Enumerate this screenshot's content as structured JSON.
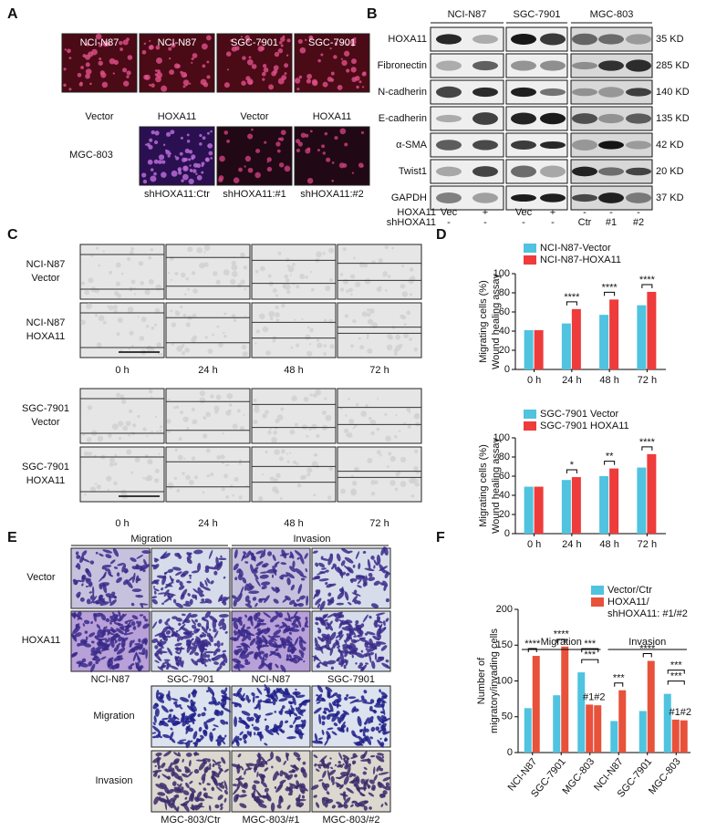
{
  "panel_labels": [
    "A",
    "B",
    "C",
    "D",
    "E",
    "F"
  ],
  "panel_a": {
    "top_titles": [
      "NCI-N87",
      "NCI-N87",
      "SGC-7901",
      "SGC-7901"
    ],
    "top_captions": [
      "Vector",
      "HOXA11",
      "Vector",
      "HOXA11"
    ],
    "bottom_title": "MGC-803",
    "bottom_captions": [
      "shHOXA11:Ctr",
      "shHOXA11:#1",
      "shHOXA11:#2"
    ]
  },
  "panel_b": {
    "columns": [
      "NCI-N87",
      "SGC-7901",
      "MGC-803"
    ],
    "rows": [
      {
        "name": "HOXA11",
        "size": "35 KD"
      },
      {
        "name": "Fibronectin",
        "size": "285 KD"
      },
      {
        "name": "N-cadherin",
        "size": "140 KD"
      },
      {
        "name": "E-cadherin",
        "size": "135 KD"
      },
      {
        "name": "α-SMA",
        "size": "42 KD"
      },
      {
        "name": "Twist1",
        "size": "20 KD"
      },
      {
        "name": "GAPDH",
        "size": "37 KD"
      }
    ],
    "conditions": [
      {
        "label": "HOXA11",
        "values": [
          "Vec",
          "+",
          "Vec",
          "+",
          "-",
          "-",
          "-"
        ]
      },
      {
        "label": "shHOXA11",
        "values": [
          "-",
          "-",
          "-",
          "-",
          "Ctr",
          "#1",
          "#2"
        ]
      }
    ]
  },
  "panel_c": {
    "rows": [
      [
        "NCI-N87",
        "Vector"
      ],
      [
        "NCI-N87",
        "HOXA11"
      ],
      [
        "SGC-7901",
        "Vector"
      ],
      [
        "SGC-7901",
        "HOXA11"
      ]
    ],
    "times": [
      "0 h",
      "24 h",
      "48 h",
      "72 h"
    ]
  },
  "panel_e": {
    "headers": [
      "Migration",
      "Invasion"
    ],
    "rows": [
      "Vector",
      "HOXA11"
    ],
    "captions": [
      "NCI-N87",
      "SGC-7901",
      "NCI-N87",
      "SGC-7901"
    ],
    "lower_rows": [
      "Migration",
      "Invasion"
    ],
    "lower_captions": [
      "MGC-803/Ctr",
      "MGC-803/#1",
      "MGC-803/#2"
    ]
  },
  "chart_data": [
    {
      "type": "bar",
      "ylabel": [
        "Migrating cells (%)",
        "Wound healing assay"
      ],
      "categories": [
        "0 h",
        "24 h",
        "48 h",
        "72 h"
      ],
      "series": [
        {
          "name": "NCI-N87-Vector",
          "color": "#4fc3df",
          "values": [
            41,
            48,
            57,
            67
          ]
        },
        {
          "name": "NCI-N87-HOXA11",
          "color": "#ee3b3b",
          "values": [
            41,
            63,
            73,
            81
          ]
        }
      ],
      "ylim": [
        0,
        100
      ],
      "yticks": [
        0,
        20,
        40,
        60,
        80,
        100
      ],
      "legend": "upper left",
      "annotations": [
        "****",
        "****",
        "****"
      ]
    },
    {
      "type": "bar",
      "ylabel": [
        "Migrating cells (%)",
        "Wound healing assay"
      ],
      "categories": [
        "0 h",
        "24 h",
        "48 h",
        "72 h"
      ],
      "series": [
        {
          "name": "SGC-7901 Vector",
          "color": "#4fc3df",
          "values": [
            49,
            56,
            60,
            69
          ]
        },
        {
          "name": "SGC-7901 HOXA11",
          "color": "#ee3b3b",
          "values": [
            49,
            59,
            68,
            83
          ]
        }
      ],
      "ylim": [
        0,
        100
      ],
      "yticks": [
        0,
        20,
        40,
        60,
        80,
        100
      ],
      "legend": "upper left",
      "annotations": [
        "*",
        "**",
        "****"
      ]
    },
    {
      "type": "bar",
      "ylabel": [
        "Number of",
        "migratory/invading cells"
      ],
      "categories": [
        "NCI-N87",
        "SGC-7901",
        "MGC-803",
        "NCI-N87",
        "SGC-7901",
        "MGC-803"
      ],
      "groups": [
        "Migration",
        "Invasion"
      ],
      "series": [
        {
          "name": "Vector/Ctr",
          "color": "#4fc3df",
          "values": [
            62,
            80,
            112,
            44,
            58,
            82
          ]
        },
        {
          "name": [
            "HOXA11/",
            "shHOXA11: #1/#2"
          ],
          "color": "#e8513a",
          "values": [
            [
              135
            ],
            [
              148
            ],
            [
              67,
              66
            ],
            [
              87
            ],
            [
              128
            ],
            [
              46,
              45
            ]
          ]
        }
      ],
      "ylim": [
        0,
        200
      ],
      "yticks": [
        0,
        50,
        100,
        150,
        200
      ],
      "legend": "upper right",
      "annotations": [
        "****",
        "****",
        "***",
        "***",
        "#1#2",
        "***",
        "****",
        "***",
        "***",
        "#1#2"
      ]
    }
  ]
}
